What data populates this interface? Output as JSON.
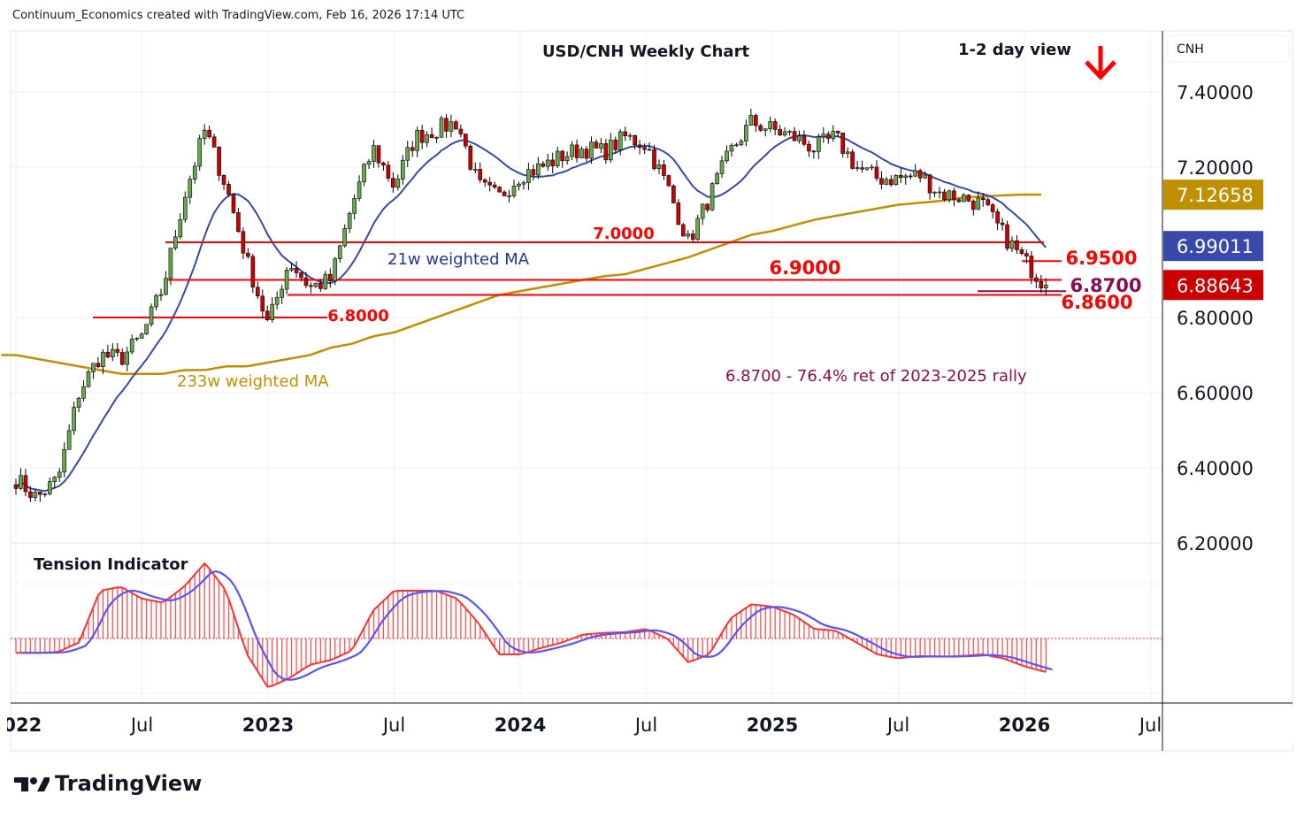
{
  "header": {
    "credit": "Continuum_Economics created with TradingView.com, Feb 16, 2026 17:14 UTC"
  },
  "brand": {
    "name": "TradingView"
  },
  "colors": {
    "up": "#6aa84f",
    "down": "#cc0000",
    "ma21": "#3949ab",
    "ma233": "#bf9000",
    "level": "#ff0000",
    "fib": "#880e4f",
    "tension": "#ff3333",
    "signal": "#5555ff"
  },
  "chart_data": {
    "type": "candlestick",
    "title": "USD/CNH Weekly Chart",
    "view_label": "1-2 day view",
    "view_direction": "down-arrow",
    "currency": "CNH",
    "ylim": [
      6.2,
      7.5
    ],
    "y_ticks": [
      "7.40000",
      "7.20000",
      "6.80000",
      "6.60000",
      "6.40000",
      "6.20000"
    ],
    "y_tick_values": [
      7.4,
      7.2,
      6.8,
      6.6,
      6.4,
      6.2
    ],
    "x_ticks": [
      {
        "label": "2022",
        "month": 0,
        "bold": true
      },
      {
        "label": "Jul",
        "month": 6,
        "bold": false
      },
      {
        "label": "2023",
        "month": 12,
        "bold": true
      },
      {
        "label": "Jul",
        "month": 18,
        "bold": false
      },
      {
        "label": "2024",
        "month": 24,
        "bold": true
      },
      {
        "label": "Jul",
        "month": 30,
        "bold": false
      },
      {
        "label": "2025",
        "month": 36,
        "bold": true
      },
      {
        "label": "Jul",
        "month": 42,
        "bold": false
      },
      {
        "label": "2026",
        "month": 48,
        "bold": true
      },
      {
        "label": "Jul",
        "month": 54,
        "bold": false
      }
    ],
    "monthly_close_start": "2022-01",
    "monthly_close": [
      6.37,
      6.32,
      6.37,
      6.6,
      6.7,
      6.69,
      6.75,
      6.88,
      7.12,
      7.3,
      7.15,
      6.95,
      6.78,
      6.95,
      6.88,
      6.9,
      7.1,
      7.25,
      7.15,
      7.28,
      7.3,
      7.32,
      7.15,
      7.12,
      7.18,
      7.2,
      7.23,
      7.25,
      7.24,
      7.28,
      7.26,
      7.15,
      7.0,
      7.12,
      7.24,
      7.32,
      7.3,
      7.28,
      7.25,
      7.28,
      7.2,
      7.17,
      7.17,
      7.18,
      7.13,
      7.12,
      7.1,
      7.02,
      6.95,
      6.886
    ],
    "ma233_monthly": [
      6.7,
      6.69,
      6.68,
      6.67,
      6.66,
      6.65,
      6.65,
      6.65,
      6.66,
      6.66,
      6.67,
      6.67,
      6.68,
      6.69,
      6.7,
      6.72,
      6.73,
      6.75,
      6.76,
      6.78,
      6.8,
      6.82,
      6.84,
      6.86,
      6.87,
      6.88,
      6.89,
      6.9,
      6.91,
      6.915,
      6.93,
      6.945,
      6.96,
      6.98,
      7.0,
      7.02,
      7.03,
      7.045,
      7.06,
      7.07,
      7.08,
      7.09,
      7.1,
      7.105,
      7.11,
      7.118,
      7.122,
      7.125,
      7.127,
      7.12658
    ],
    "tension_monthly": [
      -0.18,
      -0.18,
      -0.17,
      -0.05,
      0.6,
      0.65,
      0.5,
      0.45,
      0.65,
      0.95,
      0.6,
      -0.2,
      -0.62,
      -0.5,
      -0.33,
      -0.27,
      -0.15,
      0.35,
      0.6,
      0.6,
      0.6,
      0.5,
      0.2,
      -0.2,
      -0.2,
      -0.12,
      -0.05,
      0.05,
      0.07,
      0.08,
      0.12,
      0.0,
      -0.3,
      -0.2,
      0.25,
      0.43,
      0.4,
      0.3,
      0.12,
      0.1,
      -0.05,
      -0.2,
      -0.25,
      -0.22,
      -0.23,
      -0.22,
      -0.2,
      -0.25,
      -0.35,
      -0.42
    ],
    "price_labels": {
      "ma233": "7.12658",
      "ma21": "6.99011",
      "last": "6.88643"
    },
    "levels": [
      {
        "label": "7.0000",
        "value": 7.0
      },
      {
        "label": "6.9000",
        "value": 6.9
      },
      {
        "label": "6.8000",
        "value": 6.8
      },
      {
        "label": "6.9500",
        "value": 6.95
      },
      {
        "label": "6.8700",
        "value": 6.87
      },
      {
        "label": "6.8600",
        "value": 6.86
      }
    ],
    "annotations": {
      "ma21": "21w weighted MA",
      "ma233": "233w weighted MA",
      "fib": "6.8700 - 76.4% ret of 2023-2025 rally",
      "indicator": "Tension Indicator"
    }
  }
}
